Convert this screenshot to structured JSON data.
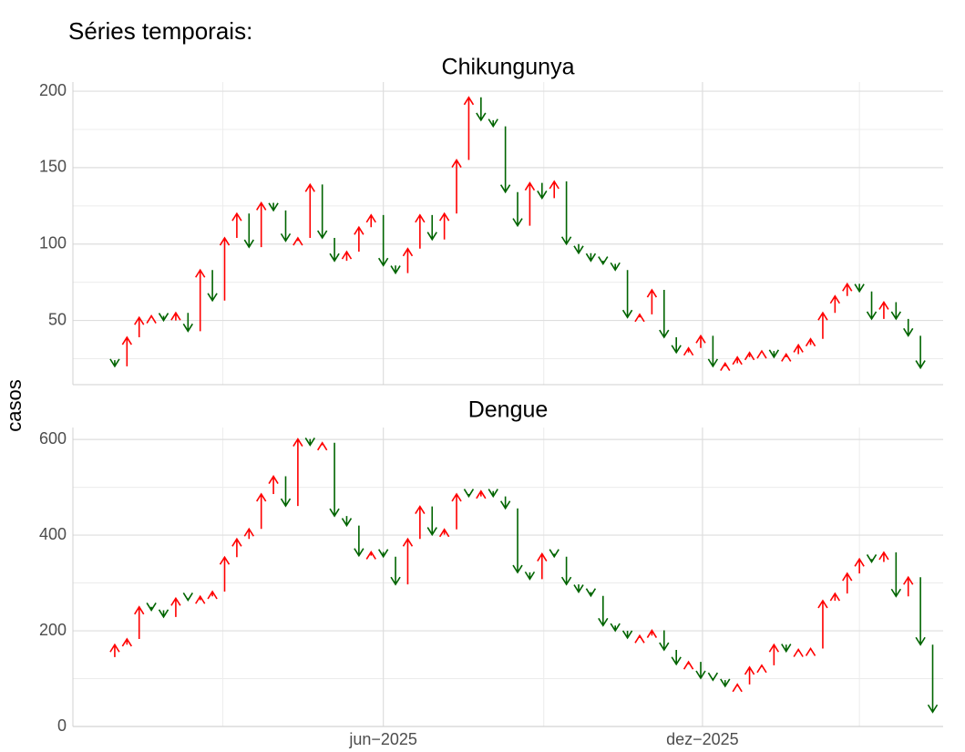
{
  "page": {
    "title": "Séries temporais:",
    "y_label": "casos",
    "xlim": [
      "2024-12-05",
      "2026-04-18"
    ],
    "xticks": [
      {
        "value": "2025-06-01",
        "label": "jun−2025"
      },
      {
        "value": "2025-12-01",
        "label": "dez−2025"
      }
    ],
    "x_minor_grid": [
      "2025-03-01",
      "2025-09-01",
      "2026-03-01"
    ],
    "up_color": "#ff0000",
    "down_color": "#006400"
  },
  "chart_data": [
    {
      "type": "arrow",
      "title": "Chikungunya",
      "x": [
        "2024-12-22",
        "2024-12-29",
        "2025-01-05",
        "2025-01-12",
        "2025-01-19",
        "2025-01-26",
        "2025-02-02",
        "2025-02-09",
        "2025-02-16",
        "2025-02-23",
        "2025-03-02",
        "2025-03-09",
        "2025-03-16",
        "2025-03-23",
        "2025-03-30",
        "2025-04-06",
        "2025-04-13",
        "2025-04-20",
        "2025-04-27",
        "2025-05-04",
        "2025-05-11",
        "2025-05-18",
        "2025-05-25",
        "2025-06-01",
        "2025-06-08",
        "2025-06-15",
        "2025-06-22",
        "2025-06-29",
        "2025-07-06",
        "2025-07-13",
        "2025-07-20",
        "2025-07-27",
        "2025-08-03",
        "2025-08-10",
        "2025-08-17",
        "2025-08-24",
        "2025-08-31",
        "2025-09-07",
        "2025-09-14",
        "2025-09-21",
        "2025-09-28",
        "2025-10-05",
        "2025-10-12",
        "2025-10-19",
        "2025-10-26",
        "2025-11-02",
        "2025-11-09",
        "2025-11-16",
        "2025-11-23",
        "2025-11-30",
        "2025-12-07",
        "2025-12-14",
        "2025-12-21",
        "2025-12-28",
        "2026-01-04",
        "2026-01-11",
        "2026-01-18",
        "2026-01-25",
        "2026-02-01",
        "2026-02-08",
        "2026-02-15",
        "2026-02-22",
        "2026-03-01",
        "2026-03-08",
        "2026-03-15",
        "2026-03-22",
        "2026-03-29",
        "2026-04-05"
      ],
      "values": [
        24,
        20,
        39,
        52,
        53,
        50,
        55,
        43,
        83,
        63,
        104,
        120,
        98,
        127,
        122,
        102,
        104,
        139,
        104,
        89,
        95,
        111,
        119,
        86,
        81,
        97,
        119,
        103,
        120,
        155,
        196,
        181,
        177,
        134,
        112,
        140,
        130,
        141,
        100,
        94,
        89,
        87,
        83,
        52,
        54,
        70,
        39,
        29,
        32,
        40,
        20,
        22,
        26,
        29,
        30,
        26,
        28,
        34,
        38,
        55,
        66,
        74,
        69,
        51,
        62,
        51,
        40,
        19
      ],
      "ylim": [
        8,
        206
      ],
      "yticks": [
        50,
        100,
        150,
        200
      ],
      "y_minor_grid": [
        25,
        75,
        125,
        175
      ]
    },
    {
      "type": "arrow",
      "title": "Dengue",
      "x": [
        "2024-12-22",
        "2024-12-29",
        "2025-01-05",
        "2025-01-12",
        "2025-01-19",
        "2025-01-26",
        "2025-02-02",
        "2025-02-09",
        "2025-02-16",
        "2025-02-23",
        "2025-03-02",
        "2025-03-09",
        "2025-03-16",
        "2025-03-23",
        "2025-03-30",
        "2025-04-06",
        "2025-04-13",
        "2025-04-20",
        "2025-04-27",
        "2025-05-04",
        "2025-05-11",
        "2025-05-18",
        "2025-05-25",
        "2025-06-01",
        "2025-06-08",
        "2025-06-15",
        "2025-06-22",
        "2025-06-29",
        "2025-07-06",
        "2025-07-13",
        "2025-07-20",
        "2025-07-27",
        "2025-08-03",
        "2025-08-10",
        "2025-08-17",
        "2025-08-24",
        "2025-08-31",
        "2025-09-07",
        "2025-09-14",
        "2025-09-21",
        "2025-09-28",
        "2025-10-05",
        "2025-10-12",
        "2025-10-19",
        "2025-10-26",
        "2025-11-02",
        "2025-11-09",
        "2025-11-16",
        "2025-11-23",
        "2025-11-30",
        "2025-12-07",
        "2025-12-14",
        "2025-12-21",
        "2025-12-28",
        "2026-01-04",
        "2026-01-11",
        "2026-01-18",
        "2026-01-25",
        "2026-02-01",
        "2026-02-08",
        "2026-02-15",
        "2026-02-22",
        "2026-03-01",
        "2026-03-08",
        "2026-03-15",
        "2026-03-22",
        "2026-03-29",
        "2026-04-05",
        "2026-04-12"
      ],
      "values": [
        145,
        171,
        183,
        250,
        243,
        229,
        268,
        264,
        272,
        282,
        354,
        392,
        413,
        486,
        523,
        461,
        601,
        588,
        593,
        440,
        420,
        357,
        365,
        355,
        297,
        392,
        460,
        401,
        412,
        486,
        481,
        492,
        481,
        456,
        322,
        308,
        361,
        355,
        297,
        281,
        273,
        211,
        200,
        185,
        190,
        201,
        160,
        130,
        135,
        101,
        97,
        84,
        88,
        124,
        128,
        171,
        157,
        161,
        163,
        263,
        278,
        320,
        350,
        344,
        364,
        272,
        312,
        171,
        30
      ],
      "ylim": [
        0,
        625
      ],
      "yticks": [
        0,
        200,
        400,
        600
      ],
      "y_minor_grid": [
        100,
        300,
        500
      ]
    }
  ]
}
